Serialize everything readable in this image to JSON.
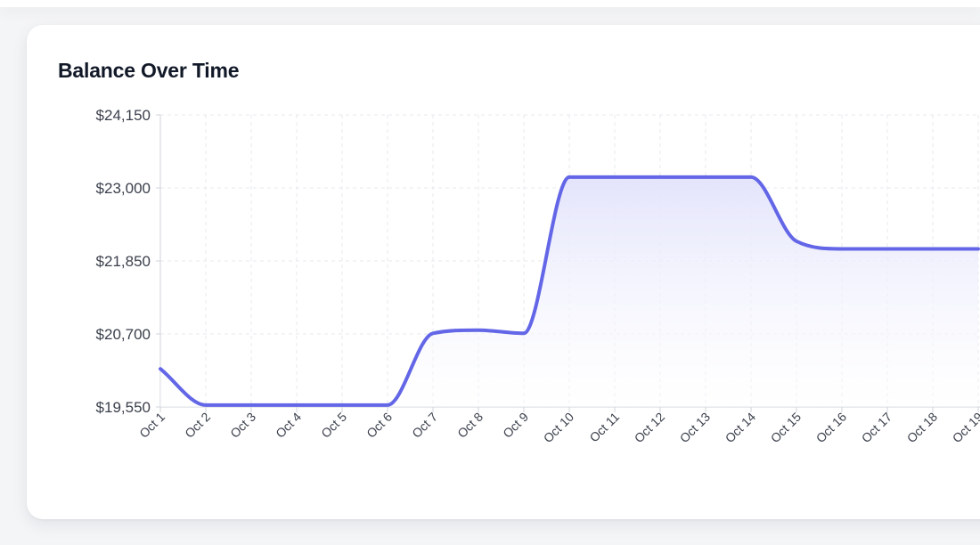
{
  "card": {
    "title": "Balance Over Time"
  },
  "chart_data": {
    "type": "area",
    "title": "Balance Over Time",
    "xlabel": "",
    "ylabel": "",
    "categories": [
      "Oct 1",
      "Oct 2",
      "Oct 3",
      "Oct 4",
      "Oct 5",
      "Oct 6",
      "Oct 7",
      "Oct 8",
      "Oct 9",
      "Oct 10",
      "Oct 11",
      "Oct 12",
      "Oct 13",
      "Oct 14",
      "Oct 15",
      "Oct 16",
      "Oct 17",
      "Oct 18",
      "Oct 19"
    ],
    "values": [
      20150,
      19580,
      19580,
      19580,
      19580,
      19580,
      20710,
      20760,
      20710,
      23170,
      23170,
      23170,
      23170,
      23170,
      22160,
      22040,
      22040,
      22040,
      22040
    ],
    "ylim": [
      19550,
      24150
    ],
    "yticks": [
      19550,
      20700,
      21850,
      23000,
      24150
    ],
    "ytick_labels": [
      "$19,550",
      "$20,700",
      "$21,850",
      "$23,000",
      "$24,150"
    ],
    "grid": true,
    "colors": {
      "line": "#6366e6",
      "fill_top": "#e3e4fb",
      "grid": "#e6e8ee",
      "axis": "#cfd3db"
    }
  }
}
